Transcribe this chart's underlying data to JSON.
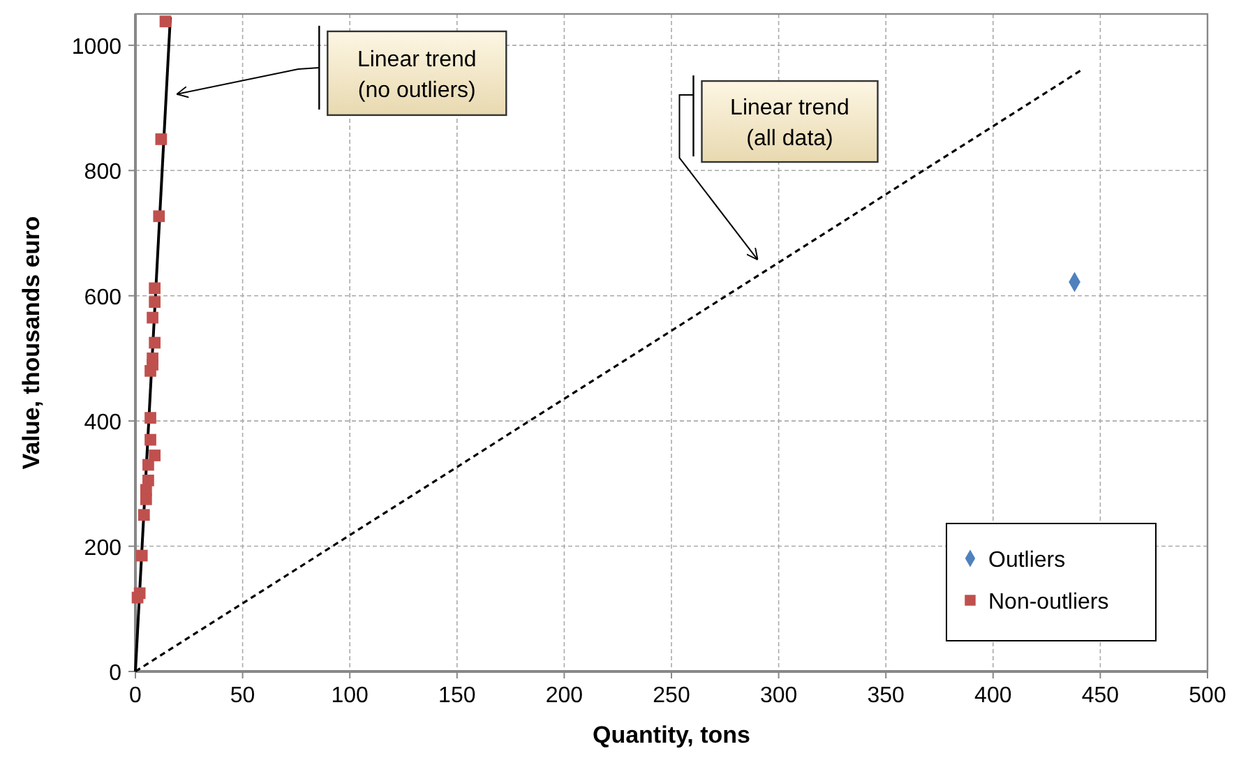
{
  "chart_data": {
    "type": "scatter",
    "xlabel": "Quantity, tons",
    "ylabel": "Value, thousands euro",
    "xlim": [
      0,
      500
    ],
    "ylim": [
      0,
      1050
    ],
    "xticks": [
      0,
      50,
      100,
      150,
      200,
      250,
      300,
      350,
      400,
      450,
      500
    ],
    "yticks": [
      0,
      200,
      400,
      600,
      800,
      1000
    ],
    "grid": true,
    "legend": "bottom right",
    "series": [
      {
        "name": "Outliers",
        "color": "#4f81bd",
        "marker": "diamond",
        "x": [
          438
        ],
        "values": [
          622
        ]
      },
      {
        "name": "Non-outliers",
        "color": "#c0504d",
        "marker": "square",
        "x": [
          14,
          12,
          11,
          9,
          9,
          8,
          9,
          8,
          7,
          8,
          7,
          7,
          9,
          6,
          6,
          5,
          4,
          5,
          3,
          2,
          1
        ],
        "values": [
          1038,
          850,
          727,
          612,
          590,
          565,
          525,
          500,
          480,
          490,
          405,
          370,
          345,
          330,
          305,
          290,
          250,
          275,
          185,
          125,
          118
        ]
      },
      {
        "type": "line",
        "color": "#000000",
        "line_style": "solid",
        "marker": "none",
        "x": [
          0,
          16.3
        ],
        "values": [
          0,
          1045
        ]
      },
      {
        "type": "line",
        "color": "#000000",
        "line_style": "dashed",
        "marker": "none",
        "x": [
          0,
          441
        ],
        "values": [
          0,
          960
        ]
      }
    ],
    "annotations": [
      "Linear trend\n(no outliers)",
      "Linear trend\n(all data)"
    ]
  }
}
